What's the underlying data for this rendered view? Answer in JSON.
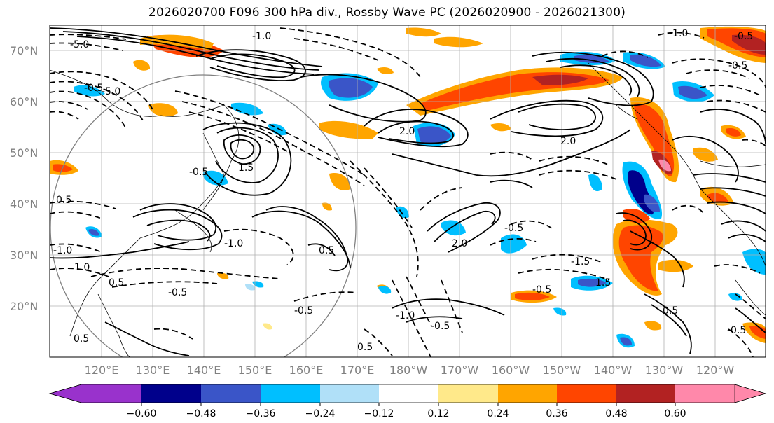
{
  "title": "2026020700 F096 300 hPa div., Rossby Wave PC (2026020900 - 2026021300)",
  "map": {
    "lat_ticks": [
      "70°N",
      "60°N",
      "50°N",
      "40°N",
      "30°N",
      "20°N"
    ],
    "lon_ticks": [
      "120°E",
      "130°E",
      "140°E",
      "150°E",
      "160°E",
      "170°E",
      "180°W",
      "170°W",
      "160°W",
      "150°W",
      "140°W",
      "130°W",
      "120°W"
    ],
    "contour_labels": [
      "-1.0",
      "-5.0",
      "-1.0",
      "-0.5",
      "-5.0",
      "-0.5",
      "2.0",
      "1.5",
      "-0.5",
      "0.5",
      "-1.0",
      "1.0",
      "-0.5",
      "2.0",
      "0.5",
      "-1.5",
      "0.5",
      "-0.5",
      "1.5",
      "-0.5",
      "-0.5",
      "-1.0",
      "-0.5",
      "0.5",
      "-0.5",
      "2.0",
      "0.5",
      "-1.0",
      "0.5",
      "-0.5"
    ]
  },
  "colorbar": {
    "labels": [
      "−0.60",
      "−0.48",
      "−0.36",
      "−0.24",
      "−0.12",
      "0.12",
      "0.24",
      "0.36",
      "0.48",
      "0.60"
    ],
    "colors": [
      "#9932cc",
      "#00008b",
      "#3a55c8",
      "#00bfff",
      "#b0e0f8",
      "#ffffff",
      "#ffe98a",
      "#ffa500",
      "#ff4500",
      "#b22222",
      "#ff88aa"
    ]
  },
  "colors": {
    "orange": "#ffa500",
    "red_orange": "#ff4500",
    "dark_red": "#b22222",
    "pink": "#ff88aa",
    "light_blue": "#b0e0f8",
    "sky_blue": "#00bfff",
    "royal_blue": "#3a55c8",
    "navy": "#00008b",
    "yellow": "#ffe98a",
    "grid": "#b0b0b0"
  }
}
